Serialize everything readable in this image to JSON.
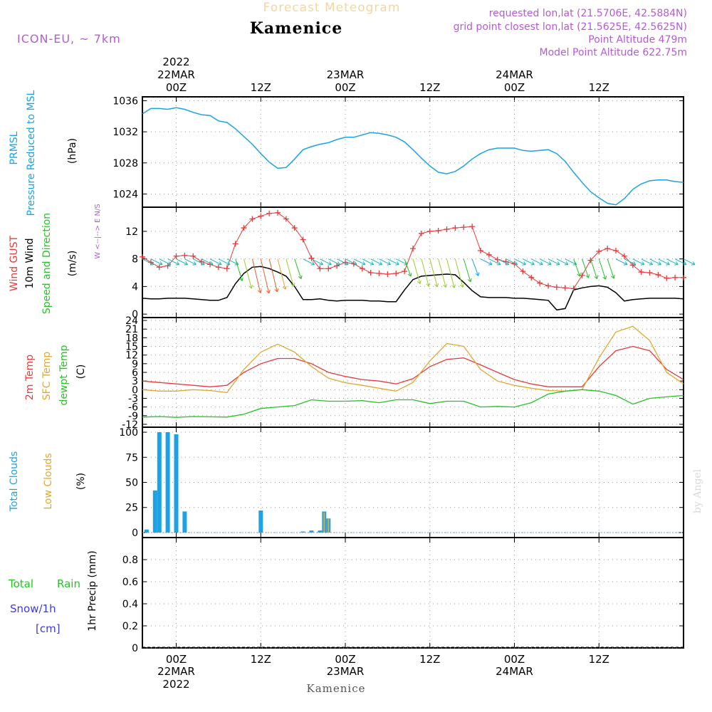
{
  "header": {
    "forecast_label": "Forecast Meteogram",
    "location": "Kamenice",
    "model": "ICON-EU, ~ 7km",
    "requested": "requested lon,lat (21.5706E, 42.5884N)",
    "grid_point": "grid point closest lon,lat (21.5625E, 42.5625N)",
    "point_altitude": "Point Altitude 479m",
    "model_altitude": "Model Point Altitude 622.75m"
  },
  "footer": {
    "location": "Kamenice",
    "credit": "by Angel"
  },
  "time_axis": {
    "note": "hours relative to 22MAR 00Z",
    "range": [
      -4,
      60
    ],
    "ticks": [
      {
        "hour": 0,
        "label": "00Z",
        "top_date": "22MAR",
        "top_year": "2022",
        "bottom_date": "22MAR",
        "bottom_year": "2022"
      },
      {
        "hour": 10,
        "label": "12Z"
      },
      {
        "hour": 20,
        "label": "00Z",
        "top_date": "23MAR",
        "bottom_date": "23MAR"
      },
      {
        "hour": 30,
        "label": "12Z"
      },
      {
        "hour": 40,
        "label": "00Z",
        "top_date": "24MAR",
        "bottom_date": "24MAR"
      },
      {
        "hour": 50,
        "label": "12Z"
      }
    ]
  },
  "colors": {
    "pressure": "#1ca3e6",
    "gust": "#e83a3a",
    "wind": "#000000",
    "temp2m": "#e83a3a",
    "sfc": "#e0a830",
    "dew": "#22c422",
    "total_clouds": "#1ca3e6",
    "low_clouds": "#e0a830",
    "label_purple": "#b45ad6",
    "rain": "#22c422",
    "snow": "#3a3ae8"
  },
  "chart_data": [
    {
      "type": "line",
      "panel": "pressure",
      "labels": [
        "PRMSL",
        "Pressure Reduced to MSL"
      ],
      "unit": "(hPa)",
      "ylim": [
        1022.3,
        1036.5
      ],
      "yticks": [
        1024,
        1028,
        1032,
        1036
      ],
      "series": [
        {
          "name": "PRMSL",
          "x": [
            -4,
            -3,
            -2,
            -1,
            0,
            1,
            2,
            3,
            4,
            5,
            6,
            7,
            8,
            9,
            10,
            11,
            12,
            13,
            14,
            15,
            16,
            17,
            18,
            19,
            20,
            21,
            22,
            23,
            24,
            25,
            26,
            27,
            28,
            29,
            30,
            31,
            32,
            33,
            34,
            35,
            36,
            37,
            38,
            39,
            40,
            41,
            42,
            43,
            44,
            45,
            46,
            47,
            48,
            49,
            50,
            51,
            52,
            53,
            54,
            55,
            56,
            57,
            58,
            59,
            60
          ],
          "values": [
            1034.3,
            1035,
            1035,
            1034.9,
            1035.1,
            1034.9,
            1034.5,
            1034.2,
            1034.1,
            1033.4,
            1033.2,
            1032.4,
            1031.4,
            1030.4,
            1029.2,
            1028.1,
            1027.3,
            1027.4,
            1028.5,
            1029.7,
            1030.1,
            1030.4,
            1030.6,
            1031,
            1031.3,
            1031.3,
            1031.6,
            1031.9,
            1031.8,
            1031.6,
            1031.3,
            1030.7,
            1029.7,
            1028.6,
            1027.6,
            1026.8,
            1026.6,
            1026.9,
            1027.6,
            1028.5,
            1029.2,
            1029.7,
            1029.9,
            1029.9,
            1029.9,
            1029.6,
            1029.5,
            1029.6,
            1029.7,
            1029.2,
            1028.2,
            1026.8,
            1025.5,
            1024.3,
            1023.5,
            1022.8,
            1022.6,
            1023.4,
            1024.6,
            1025.3,
            1025.7,
            1025.8,
            1025.8,
            1025.6,
            1025.5
          ]
        }
      ]
    },
    {
      "type": "line",
      "panel": "wind",
      "labels": [
        "Wind GUST",
        "10m Wind",
        "Speed and Direction"
      ],
      "unit": "(m/s)",
      "compass": "W <--|--> E  N/S",
      "ylim": [
        -0.5,
        15.5
      ],
      "yticks": [
        0,
        4,
        8,
        12
      ],
      "series": [
        {
          "name": "Wind GUST",
          "x": [
            -4,
            -3,
            -2,
            -1,
            0,
            1,
            2,
            3,
            4,
            5,
            6,
            7,
            8,
            9,
            10,
            11,
            12,
            13,
            14,
            15,
            16,
            17,
            18,
            19,
            20,
            21,
            22,
            23,
            24,
            25,
            26,
            27,
            28,
            29,
            30,
            31,
            32,
            33,
            34,
            35,
            36,
            37,
            38,
            39,
            40,
            41,
            42,
            43,
            44,
            45,
            46,
            47,
            48,
            49,
            50,
            51,
            52,
            53,
            54,
            55,
            56,
            57,
            58,
            59,
            60
          ],
          "values": [
            8.3,
            7.5,
            6.8,
            7,
            8.4,
            8.5,
            8.4,
            7.6,
            7.2,
            6.8,
            6.6,
            10.2,
            12.5,
            13.8,
            14.2,
            14.6,
            14.7,
            13.8,
            12.5,
            10.8,
            8.1,
            6.6,
            6.6,
            7,
            7.5,
            7.3,
            6.6,
            6,
            5.9,
            5.8,
            5.9,
            6.2,
            9.5,
            11.7,
            12,
            12.1,
            12.3,
            12.5,
            12.6,
            12.7,
            9.2,
            8.6,
            7.9,
            7.6,
            7.3,
            6.2,
            5.3,
            4.5,
            4.1,
            3.9,
            3.8,
            3.7,
            5.6,
            7.8,
            9.1,
            9.5,
            9.2,
            8.4,
            7.1,
            6.1,
            6.0,
            5.7,
            5.2,
            5.3,
            5.3
          ]
        },
        {
          "name": "10m Wind",
          "x": [
            -4,
            -3,
            -2,
            -1,
            0,
            1,
            2,
            3,
            4,
            5,
            6,
            7,
            8,
            9,
            10,
            11,
            12,
            13,
            14,
            15,
            16,
            17,
            18,
            19,
            20,
            21,
            22,
            23,
            24,
            25,
            26,
            27,
            28,
            29,
            30,
            31,
            32,
            33,
            34,
            35,
            36,
            37,
            38,
            39,
            40,
            41,
            42,
            43,
            44,
            45,
            46,
            47,
            48,
            49,
            50,
            51,
            52,
            53,
            54,
            55,
            56,
            57,
            58,
            59,
            60
          ],
          "values": [
            2.3,
            2.2,
            2.2,
            2.3,
            2.3,
            2.3,
            2.2,
            2.1,
            2.0,
            2.0,
            2.4,
            4.4,
            5.9,
            6.8,
            6.9,
            6.6,
            6.1,
            5.5,
            4.0,
            2.1,
            2.1,
            2.2,
            2.0,
            1.9,
            2.0,
            2.0,
            2.0,
            1.9,
            1.9,
            1.8,
            1.8,
            3.5,
            5.0,
            5.5,
            5.6,
            5.7,
            5.8,
            5.7,
            4.6,
            3.4,
            2.5,
            2.4,
            2.4,
            2.4,
            2.3,
            2.3,
            2.2,
            2.1,
            2.0,
            0.6,
            0.8,
            3.5,
            3.8,
            4.0,
            4.1,
            3.9,
            3.1,
            1.9,
            2.1,
            2.2,
            2.3,
            2.3,
            2.3,
            2.3,
            2.2
          ]
        }
      ]
    },
    {
      "type": "line",
      "panel": "temperature",
      "labels": [
        "2m Temp",
        "SFC Temp",
        "dewpt Temp"
      ],
      "unit": "(C)",
      "ylim": [
        -13,
        25
      ],
      "yticks": [
        -12,
        -9,
        -6,
        -3,
        0,
        3,
        6,
        9,
        12,
        15,
        18,
        21,
        24
      ],
      "series": [
        {
          "name": "2m Temp",
          "x": [
            -4,
            -2,
            0,
            2,
            4,
            6,
            8,
            10,
            12,
            14,
            16,
            18,
            20,
            22,
            24,
            26,
            28,
            30,
            32,
            34,
            36,
            38,
            40,
            42,
            44,
            46,
            48,
            50,
            52,
            54,
            56,
            58,
            60
          ],
          "values": [
            3,
            2.5,
            2,
            1.5,
            1,
            1.5,
            6,
            9,
            10.8,
            10.8,
            9,
            6,
            4.6,
            3.5,
            3,
            2,
            3.8,
            8,
            10.5,
            11,
            8.6,
            6,
            3.5,
            2,
            1,
            1,
            1,
            8,
            13.5,
            15,
            13.5,
            7,
            3.5
          ]
        },
        {
          "name": "SFC Temp",
          "x": [
            -4,
            -2,
            0,
            2,
            4,
            6,
            8,
            10,
            12,
            14,
            16,
            18,
            20,
            22,
            24,
            26,
            28,
            30,
            32,
            34,
            36,
            38,
            40,
            42,
            44,
            46,
            48,
            50,
            52,
            54,
            56,
            58,
            60
          ],
          "values": [
            0,
            -0.5,
            -0.5,
            0,
            -0.3,
            -1,
            7,
            13,
            15.8,
            13,
            8,
            4,
            2.4,
            1.5,
            0.5,
            -0.5,
            2.5,
            10,
            16,
            15,
            7,
            3,
            1.5,
            0.5,
            -0.3,
            -0.5,
            0,
            11,
            20,
            22,
            17,
            6,
            2
          ]
        },
        {
          "name": "dewpt Temp",
          "x": [
            -4,
            -2,
            0,
            2,
            4,
            6,
            8,
            10,
            12,
            14,
            16,
            18,
            20,
            22,
            24,
            26,
            28,
            30,
            32,
            34,
            36,
            38,
            40,
            42,
            44,
            46,
            48,
            50,
            52,
            54,
            56,
            58,
            60
          ],
          "values": [
            -9.5,
            -9.3,
            -9.6,
            -9.3,
            -9.4,
            -9.5,
            -8.5,
            -6.5,
            -6,
            -5.5,
            -3.5,
            -4,
            -4,
            -3.8,
            -4.5,
            -3.5,
            -3.5,
            -4.8,
            -4,
            -4,
            -6,
            -5.8,
            -6,
            -4.5,
            -1.5,
            -0.5,
            0,
            -0.5,
            -2,
            -5,
            -3,
            -2.5,
            -2
          ]
        }
      ]
    },
    {
      "type": "bar",
      "panel": "clouds",
      "labels": [
        "Total Clouds",
        "Low Clouds"
      ],
      "unit": "(%)",
      "ylim": [
        -5,
        105
      ],
      "yticks": [
        0,
        25,
        50,
        75,
        100
      ],
      "series": [
        {
          "name": "Total Clouds",
          "x": [
            -3.5,
            -2.5,
            -2,
            -1,
            0,
            1,
            10,
            15,
            16,
            17,
            17.5,
            18
          ],
          "values": [
            3,
            42,
            100,
            100,
            98,
            21,
            22,
            1,
            2,
            2,
            21,
            14
          ]
        },
        {
          "name": "Low Clouds",
          "x": [
            17.5,
            18
          ],
          "values": [
            20,
            14
          ]
        }
      ]
    },
    {
      "type": "bar",
      "panel": "precipitation",
      "labels": [
        "Total",
        "Rain",
        "Snow/1h",
        "[cm]"
      ],
      "unit": "1hr Precip (mm)",
      "ylim": [
        0,
        1.0
      ],
      "yticks": [
        0,
        0.2,
        0.4,
        0.6,
        0.8
      ],
      "ytick_labels": [
        "0",
        "0.2",
        "0.4",
        "0.6",
        "0.8"
      ],
      "series": [
        {
          "name": "Total Rain",
          "x": [],
          "values": []
        },
        {
          "name": "Snow",
          "x": [],
          "values": []
        }
      ]
    }
  ]
}
